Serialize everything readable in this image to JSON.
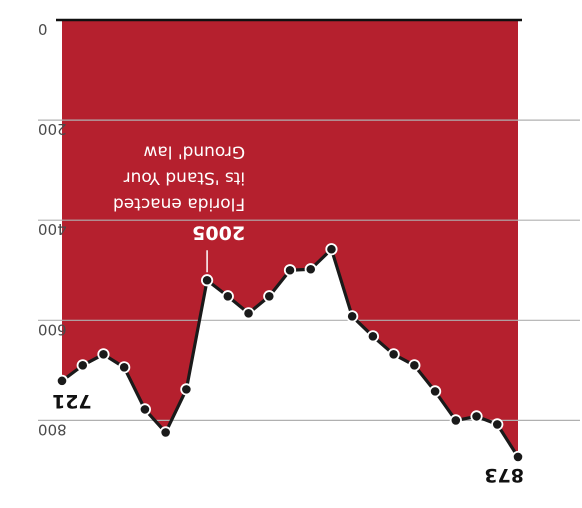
{
  "chart_data": {
    "type": "area",
    "orientation_note": "image is rotated 180 degrees",
    "title": "",
    "xlabel": "",
    "ylabel": "",
    "ylim": [
      0,
      850
    ],
    "yticks": [
      0,
      200,
      400,
      600,
      800
    ],
    "grid": true,
    "series": [
      {
        "values": [
          873,
          808,
          792,
          800,
          742,
          690,
          668,
          632,
          592,
          458,
          498,
          500,
          552,
          586,
          552,
          520,
          738,
          824,
          778,
          694,
          668,
          690,
          721
        ]
      }
    ],
    "end_labels": {
      "first": "873",
      "last": "721"
    },
    "annotation": {
      "lines": [
        "2005",
        "Florida enacted",
        "its 'Stand Your",
        "Ground' law"
      ],
      "point_index": 15
    },
    "colors": {
      "fill": "#b5202e",
      "line": "#1a1a1a",
      "marker": "#1a1a1a",
      "marker_ring": "#ffffff",
      "grid": "#b0b0b0"
    }
  }
}
